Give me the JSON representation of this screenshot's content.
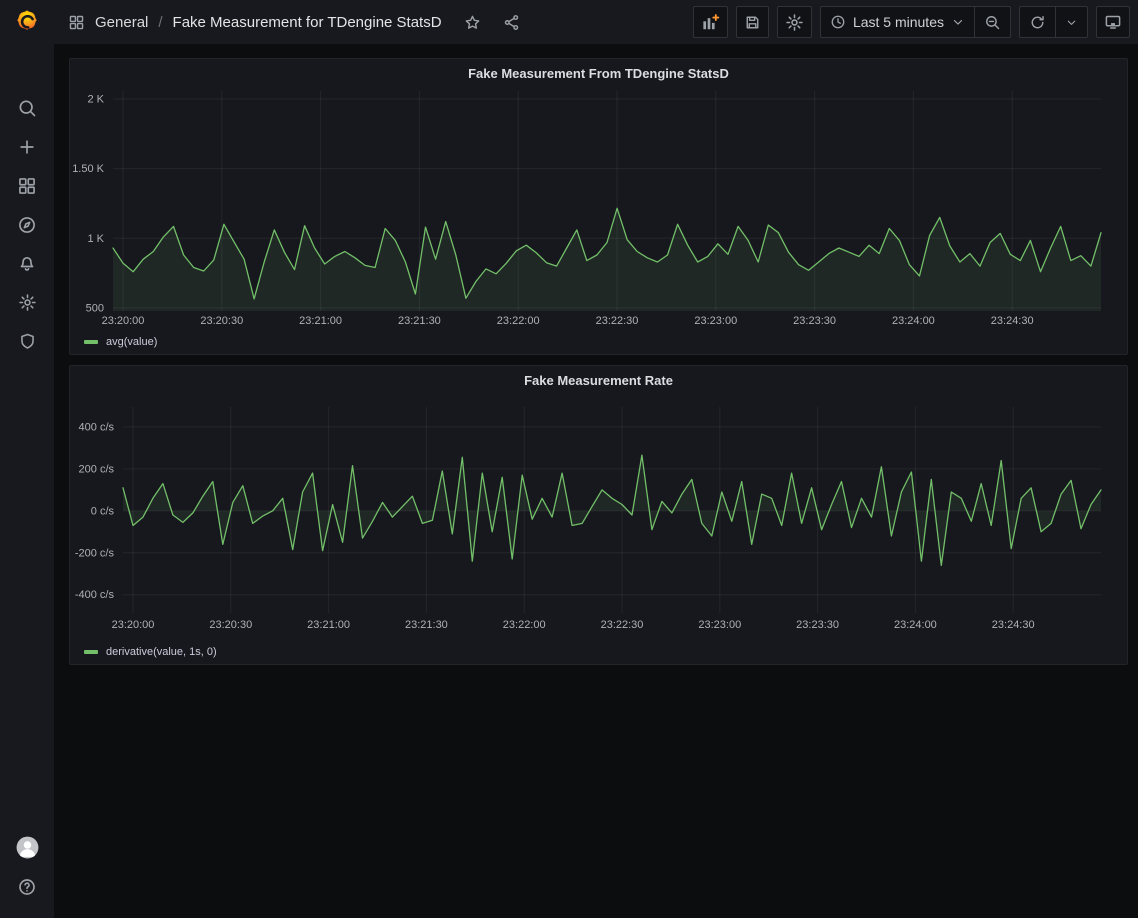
{
  "topbar": {
    "breadcrumb": {
      "section": "General",
      "separator": "/",
      "title": "Fake Measurement for TDengine StatsD"
    },
    "toolbar": {
      "time_range": {
        "label": "Last 5 minutes"
      }
    }
  },
  "sidebar": {
    "items": [
      {
        "icon": "search-icon"
      },
      {
        "icon": "plus-icon"
      },
      {
        "icon": "dashboards-grid-icon"
      },
      {
        "icon": "compass-icon"
      },
      {
        "icon": "bell-icon"
      },
      {
        "icon": "gear-icon"
      },
      {
        "icon": "shield-icon"
      }
    ],
    "bottom": [
      {
        "icon": "avatar"
      },
      {
        "icon": "question-circle-icon"
      }
    ]
  },
  "colors": {
    "series_green": "#73bf69",
    "series_green_fill": "rgba(115,191,105,0.10)",
    "grid": "rgba(204,204,220,0.08)",
    "add_panel_plus": "#ff9830"
  },
  "chart_data": [
    {
      "type": "line",
      "title": "Fake Measurement From TDengine StatsD",
      "xlabel": "",
      "ylabel": "",
      "grid": true,
      "legend_position": "bottom-left",
      "fill_to": "bottom",
      "x_ticks": [
        "23:20:00",
        "23:20:30",
        "23:21:00",
        "23:21:30",
        "23:22:00",
        "23:22:30",
        "23:23:00",
        "23:23:30",
        "23:24:00",
        "23:24:30"
      ],
      "y_ticks": [
        {
          "value": 2000,
          "label": "2 K"
        },
        {
          "value": 1500,
          "label": "1.50 K"
        },
        {
          "value": 1000,
          "label": "1 K"
        },
        {
          "value": 500,
          "label": "500"
        }
      ],
      "ylim": [
        478,
        2057
      ],
      "series": [
        {
          "name": "avg(value)",
          "color": "#73bf69",
          "values": [
            930,
            820,
            760,
            850,
            905,
            1010,
            1085,
            880,
            790,
            765,
            845,
            1100,
            975,
            850,
            565,
            830,
            1060,
            900,
            775,
            1090,
            930,
            815,
            870,
            905,
            860,
            805,
            790,
            1070,
            985,
            830,
            600,
            1080,
            850,
            1120,
            880,
            570,
            690,
            780,
            745,
            820,
            910,
            950,
            895,
            825,
            800,
            930,
            1060,
            840,
            880,
            970,
            1215,
            990,
            905,
            860,
            830,
            880,
            1100,
            950,
            830,
            870,
            960,
            885,
            1085,
            985,
            830,
            1095,
            1040,
            900,
            810,
            770,
            830,
            890,
            930,
            900,
            870,
            950,
            890,
            1070,
            985,
            810,
            730,
            1020,
            1150,
            945,
            830,
            890,
            800,
            970,
            1035,
            885,
            840,
            985,
            760,
            930,
            1085,
            840,
            875,
            800,
            1040
          ]
        }
      ]
    },
    {
      "type": "line",
      "title": "Fake Measurement Rate",
      "xlabel": "",
      "ylabel": "",
      "grid": true,
      "legend_position": "bottom-left",
      "fill_to": "zero",
      "x_ticks": [
        "23:20:00",
        "23:20:30",
        "23:21:00",
        "23:21:30",
        "23:22:00",
        "23:22:30",
        "23:23:00",
        "23:23:30",
        "23:24:00",
        "23:24:30"
      ],
      "y_ticks": [
        {
          "value": 400,
          "label": "400 c/s"
        },
        {
          "value": 200,
          "label": "200 c/s"
        },
        {
          "value": 0,
          "label": "0 c/s"
        },
        {
          "value": -200,
          "label": "-200 c/s"
        },
        {
          "value": -400,
          "label": "-400 c/s"
        }
      ],
      "ylim": [
        -487,
        495
      ],
      "series": [
        {
          "name": "derivative(value, 1s, 0)",
          "color": "#73bf69",
          "values": [
            110,
            -70,
            -30,
            60,
            130,
            -20,
            -55,
            -10,
            70,
            140,
            -160,
            40,
            120,
            -60,
            -25,
            0,
            60,
            -185,
            90,
            180,
            -190,
            30,
            -150,
            215,
            -130,
            -50,
            40,
            -30,
            20,
            70,
            -60,
            -45,
            190,
            -110,
            255,
            -240,
            180,
            -100,
            160,
            -230,
            170,
            -40,
            60,
            -30,
            180,
            -70,
            -60,
            20,
            100,
            60,
            30,
            -20,
            265,
            -90,
            45,
            -10,
            80,
            150,
            -60,
            -120,
            90,
            -50,
            140,
            -160,
            80,
            60,
            -70,
            180,
            -60,
            110,
            -90,
            30,
            140,
            -80,
            60,
            -30,
            210,
            -120,
            90,
            185,
            -240,
            150,
            -260,
            90,
            60,
            -50,
            130,
            -70,
            240,
            -180,
            60,
            110,
            -100,
            -60,
            80,
            145,
            -85,
            30,
            100
          ]
        }
      ]
    }
  ]
}
